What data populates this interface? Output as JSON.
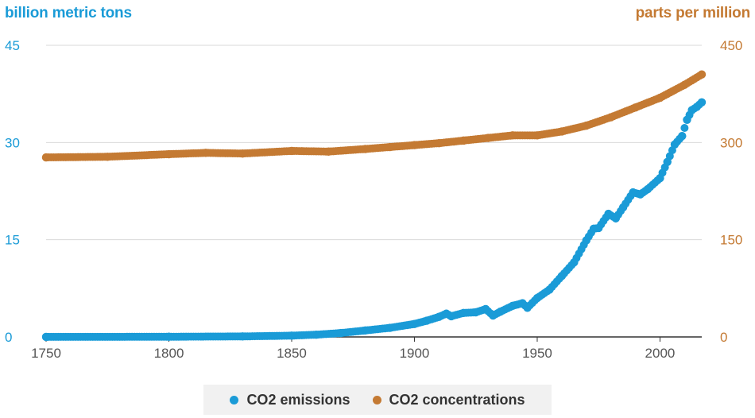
{
  "chart_data": {
    "type": "scatter",
    "left_axis_label": "billion metric tons",
    "right_axis_label": "parts per million",
    "xlim": [
      1750,
      2017
    ],
    "x_ticks": [
      1750,
      1800,
      1850,
      1900,
      1950,
      2000
    ],
    "left_ylim": [
      0,
      45
    ],
    "left_ticks": [
      0,
      15,
      30,
      45
    ],
    "right_ylim": [
      0,
      450
    ],
    "right_ticks": [
      0,
      150,
      300,
      450
    ],
    "grid": true,
    "legend_position": "bottom-center",
    "series": [
      {
        "name": "CO2 emissions",
        "axis": "left",
        "color": "#1a9bd7",
        "x": [
          1750,
          1800,
          1830,
          1850,
          1860,
          1870,
          1880,
          1890,
          1900,
          1905,
          1910,
          1913,
          1915,
          1920,
          1925,
          1929,
          1932,
          1935,
          1940,
          1944,
          1946,
          1950,
          1955,
          1960,
          1965,
          1970,
          1973,
          1975,
          1979,
          1982,
          1985,
          1989,
          1992,
          1995,
          2000,
          2003,
          2006,
          2009,
          2011,
          2013,
          2015,
          2017
        ],
        "y": [
          0.01,
          0.03,
          0.08,
          0.2,
          0.35,
          0.6,
          1.0,
          1.4,
          2.0,
          2.5,
          3.1,
          3.6,
          3.2,
          3.7,
          3.8,
          4.3,
          3.3,
          3.9,
          4.8,
          5.2,
          4.5,
          6.0,
          7.3,
          9.4,
          11.5,
          14.9,
          16.7,
          16.8,
          19.0,
          18.3,
          20.0,
          22.3,
          22.0,
          22.8,
          24.5,
          27.0,
          29.7,
          31.0,
          33.5,
          35.0,
          35.5,
          36.2
        ]
      },
      {
        "name": "CO2 concentrations",
        "axis": "right",
        "color": "#c47a33",
        "x": [
          1750,
          1775,
          1800,
          1815,
          1830,
          1850,
          1865,
          1880,
          1890,
          1900,
          1910,
          1920,
          1930,
          1940,
          1950,
          1960,
          1970,
          1980,
          1990,
          2000,
          2010,
          2017
        ],
        "y": [
          277,
          278,
          282,
          284,
          283,
          287,
          286,
          290,
          293,
          296,
          299,
          303,
          307,
          311,
          311,
          317,
          326,
          339,
          354,
          369,
          389,
          405
        ]
      }
    ]
  }
}
